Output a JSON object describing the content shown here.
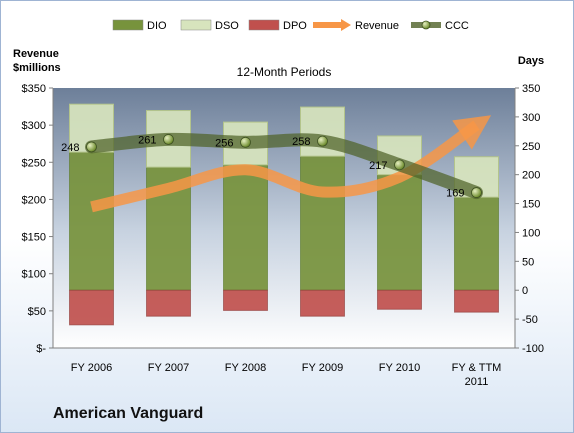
{
  "company_name": "American Vanguard",
  "chart_data": {
    "type": "bar",
    "title": "12-Month Periods",
    "categories": [
      "FY 2006",
      "FY 2007",
      "FY 2008",
      "FY 2009",
      "FY 2010",
      "FY & TTM 2011"
    ],
    "left_axis": {
      "label": "Revenue\n$millions",
      "range": [
        0,
        350
      ],
      "ticks": [
        "$-",
        "$50",
        "$100",
        "$150",
        "$200",
        "$250",
        "$300",
        "$350"
      ]
    },
    "right_axis": {
      "label": "Days",
      "range": [
        -100,
        350
      ],
      "ticks": [
        "-100",
        "-50",
        "0",
        "50",
        "100",
        "150",
        "200",
        "250",
        "300",
        "350"
      ]
    },
    "series": [
      {
        "name": "DIO",
        "type": "stacked-bar",
        "axis": "right",
        "color": "#77933c",
        "values": [
          239,
          213,
          217,
          232,
          200,
          161
        ]
      },
      {
        "name": "DSO",
        "type": "stacked-bar",
        "axis": "right",
        "color": "#d7e4bd",
        "values": [
          83,
          98,
          74,
          85,
          67,
          70
        ]
      },
      {
        "name": "DPO",
        "type": "negative-bar",
        "axis": "right",
        "color": "#c0504d",
        "values": [
          -60,
          -45,
          -35,
          -45,
          -33,
          -38
        ]
      },
      {
        "name": "Revenue",
        "type": "line-arrow",
        "axis": "left",
        "color": "#f79646",
        "values": [
          190,
          215,
          240,
          210,
          230,
          300
        ]
      },
      {
        "name": "CCC",
        "type": "line-markers",
        "axis": "right",
        "color": "#4f6228",
        "values": [
          248,
          261,
          256,
          258,
          217,
          169
        ],
        "labels": [
          "248",
          "261",
          "256",
          "258",
          "217",
          "169"
        ]
      }
    ],
    "legend_position": "top",
    "gridlines": false
  }
}
